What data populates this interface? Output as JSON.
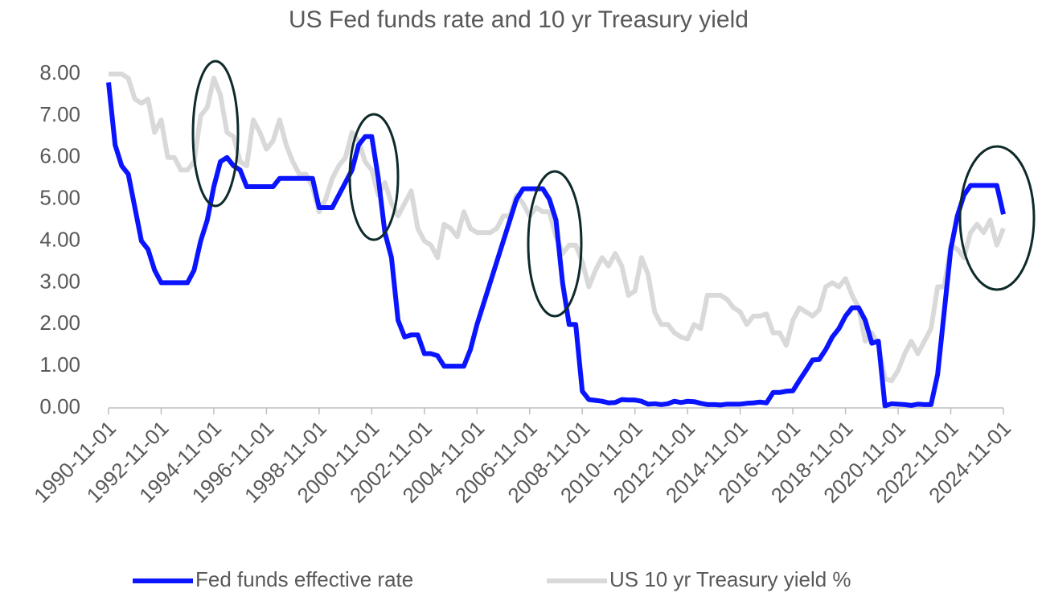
{
  "chart_data": {
    "type": "line",
    "title": "US Fed funds rate and 10 yr Treasury yield",
    "x": [
      "1990-11-01",
      "1991-02-01",
      "1991-05-01",
      "1991-08-01",
      "1991-11-01",
      "1992-02-01",
      "1992-05-01",
      "1992-08-01",
      "1992-11-01",
      "1993-02-01",
      "1993-05-01",
      "1993-08-01",
      "1993-11-01",
      "1994-02-01",
      "1994-05-01",
      "1994-08-01",
      "1994-11-01",
      "1995-02-01",
      "1995-05-01",
      "1995-08-01",
      "1995-11-01",
      "1996-02-01",
      "1996-05-01",
      "1996-08-01",
      "1996-11-01",
      "1997-02-01",
      "1997-05-01",
      "1997-08-01",
      "1997-11-01",
      "1998-02-01",
      "1998-05-01",
      "1998-08-01",
      "1998-11-01",
      "1999-02-01",
      "1999-05-01",
      "1999-08-01",
      "1999-11-01",
      "2000-02-01",
      "2000-05-01",
      "2000-08-01",
      "2000-11-01",
      "2001-02-01",
      "2001-05-01",
      "2001-08-01",
      "2001-11-01",
      "2002-02-01",
      "2002-05-01",
      "2002-08-01",
      "2002-11-01",
      "2003-02-01",
      "2003-05-01",
      "2003-08-01",
      "2003-11-01",
      "2004-02-01",
      "2004-05-01",
      "2004-08-01",
      "2004-11-01",
      "2005-02-01",
      "2005-05-01",
      "2005-08-01",
      "2005-11-01",
      "2006-02-01",
      "2006-05-01",
      "2006-08-01",
      "2006-11-01",
      "2007-02-01",
      "2007-05-01",
      "2007-08-01",
      "2007-11-01",
      "2008-02-01",
      "2008-05-01",
      "2008-08-01",
      "2008-11-01",
      "2009-02-01",
      "2009-05-01",
      "2009-08-01",
      "2009-11-01",
      "2010-02-01",
      "2010-05-01",
      "2010-08-01",
      "2010-11-01",
      "2011-02-01",
      "2011-05-01",
      "2011-08-01",
      "2011-11-01",
      "2012-02-01",
      "2012-05-01",
      "2012-08-01",
      "2012-11-01",
      "2013-02-01",
      "2013-05-01",
      "2013-08-01",
      "2013-11-01",
      "2014-02-01",
      "2014-05-01",
      "2014-08-01",
      "2014-11-01",
      "2015-02-01",
      "2015-05-01",
      "2015-08-01",
      "2015-11-01",
      "2016-02-01",
      "2016-05-01",
      "2016-08-01",
      "2016-11-01",
      "2017-02-01",
      "2017-05-01",
      "2017-08-01",
      "2017-11-01",
      "2018-02-01",
      "2018-05-01",
      "2018-08-01",
      "2018-11-01",
      "2019-02-01",
      "2019-05-01",
      "2019-08-01",
      "2019-11-01",
      "2020-02-01",
      "2020-05-01",
      "2020-08-01",
      "2020-11-01",
      "2021-02-01",
      "2021-05-01",
      "2021-08-01",
      "2021-11-01",
      "2022-02-01",
      "2022-05-01",
      "2022-08-01",
      "2022-11-01",
      "2023-02-01",
      "2023-05-01",
      "2023-08-01",
      "2023-11-01",
      "2024-02-01",
      "2024-05-01",
      "2024-08-01",
      "2024-11-01"
    ],
    "series": [
      {
        "name": "Fed funds effective rate",
        "color": "#0a14ff",
        "values": [
          7.8,
          6.3,
          5.8,
          5.6,
          4.8,
          4.0,
          3.8,
          3.3,
          3.0,
          3.0,
          3.0,
          3.0,
          3.0,
          3.3,
          4.0,
          4.5,
          5.3,
          5.9,
          6.0,
          5.8,
          5.7,
          5.3,
          5.3,
          5.3,
          5.3,
          5.3,
          5.5,
          5.5,
          5.5,
          5.5,
          5.5,
          5.5,
          4.8,
          4.8,
          4.8,
          5.1,
          5.4,
          5.7,
          6.3,
          6.5,
          6.5,
          5.5,
          4.2,
          3.6,
          2.1,
          1.7,
          1.75,
          1.75,
          1.3,
          1.3,
          1.25,
          1.0,
          1.0,
          1.0,
          1.0,
          1.4,
          2.0,
          2.5,
          3.0,
          3.5,
          4.0,
          4.5,
          5.0,
          5.25,
          5.25,
          5.25,
          5.25,
          5.0,
          4.5,
          3.0,
          2.0,
          2.0,
          0.4,
          0.2,
          0.18,
          0.16,
          0.12,
          0.13,
          0.2,
          0.19,
          0.19,
          0.16,
          0.09,
          0.1,
          0.08,
          0.1,
          0.16,
          0.13,
          0.16,
          0.15,
          0.11,
          0.08,
          0.08,
          0.07,
          0.09,
          0.09,
          0.09,
          0.11,
          0.12,
          0.14,
          0.12,
          0.37,
          0.37,
          0.4,
          0.41,
          0.66,
          0.9,
          1.15,
          1.16,
          1.4,
          1.7,
          1.9,
          2.2,
          2.4,
          2.4,
          2.1,
          1.55,
          1.6,
          0.05,
          0.1,
          0.09,
          0.08,
          0.06,
          0.09,
          0.08,
          0.08,
          0.8,
          2.3,
          3.8,
          4.6,
          5.1,
          5.33,
          5.33,
          5.33,
          5.33,
          5.33,
          4.64
        ]
      },
      {
        "name": "US 10 yr Treasury yield %",
        "color": "#d9d9d9",
        "values": [
          8.0,
          8.0,
          8.0,
          7.9,
          7.4,
          7.3,
          7.4,
          6.6,
          6.9,
          6.0,
          6.0,
          5.7,
          5.7,
          5.9,
          7.0,
          7.2,
          7.9,
          7.5,
          6.6,
          6.5,
          5.9,
          5.8,
          6.9,
          6.6,
          6.2,
          6.4,
          6.9,
          6.3,
          5.9,
          5.6,
          5.6,
          5.3,
          4.7,
          5.0,
          5.5,
          5.8,
          6.0,
          6.6,
          6.4,
          5.9,
          5.7,
          5.1,
          5.4,
          4.9,
          4.6,
          4.9,
          5.2,
          4.3,
          4.0,
          3.9,
          3.6,
          4.4,
          4.3,
          4.1,
          4.7,
          4.3,
          4.2,
          4.2,
          4.2,
          4.3,
          4.6,
          4.6,
          5.1,
          4.9,
          4.6,
          4.8,
          4.7,
          4.7,
          4.1,
          3.7,
          3.9,
          3.9,
          3.5,
          2.9,
          3.3,
          3.6,
          3.4,
          3.7,
          3.4,
          2.7,
          2.8,
          3.6,
          3.2,
          2.3,
          2.0,
          2.0,
          1.8,
          1.7,
          1.65,
          2.0,
          1.9,
          2.7,
          2.7,
          2.7,
          2.6,
          2.4,
          2.3,
          2.0,
          2.2,
          2.2,
          2.25,
          1.8,
          1.8,
          1.5,
          2.1,
          2.4,
          2.3,
          2.2,
          2.35,
          2.9,
          3.0,
          2.9,
          3.1,
          2.7,
          2.4,
          1.6,
          1.8,
          1.5,
          0.7,
          0.65,
          0.9,
          1.3,
          1.6,
          1.3,
          1.6,
          1.9,
          2.9,
          2.9,
          3.9,
          3.8,
          3.6,
          4.2,
          4.4,
          4.2,
          4.5,
          3.9,
          4.3
        ]
      }
    ],
    "xlim": [
      "1990-11-01",
      "2024-11-01"
    ],
    "xticks": [
      "1990-11-01",
      "1992-11-01",
      "1994-11-01",
      "1996-11-01",
      "1998-11-01",
      "2000-11-01",
      "2002-11-01",
      "2004-11-01",
      "2006-11-01",
      "2008-11-01",
      "2010-11-01",
      "2012-11-01",
      "2014-11-01",
      "2016-11-01",
      "2018-11-01",
      "2020-11-01",
      "2022-11-01",
      "2024-11-01"
    ],
    "ylim": [
      0,
      8
    ],
    "yticks": [
      {
        "value": 0,
        "label": "0.00"
      },
      {
        "value": 1,
        "label": "1.00"
      },
      {
        "value": 2,
        "label": "2.00"
      },
      {
        "value": 3,
        "label": "3.00"
      },
      {
        "value": 4,
        "label": "4.00"
      },
      {
        "value": 5,
        "label": "5.00"
      },
      {
        "value": 6,
        "label": "6.00"
      },
      {
        "value": 7,
        "label": "7.00"
      },
      {
        "value": 8,
        "label": "8.00"
      }
    ],
    "grid": false,
    "legend": "bottom"
  }
}
